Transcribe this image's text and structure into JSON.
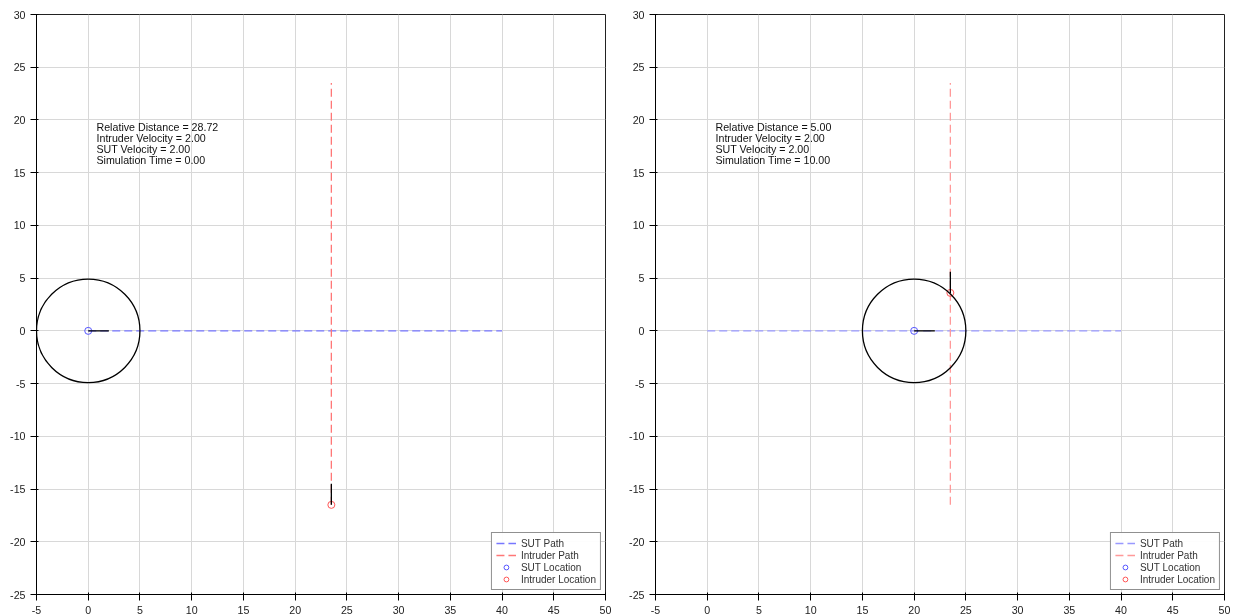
{
  "chart_data": [
    {
      "type": "line",
      "xlim": [
        -5,
        50
      ],
      "ylim": [
        -25,
        30
      ],
      "xticks": [
        -5,
        0,
        5,
        10,
        15,
        20,
        25,
        30,
        35,
        40,
        45,
        50
      ],
      "yticks": [
        -25,
        -20,
        -15,
        -10,
        -5,
        0,
        5,
        10,
        15,
        20,
        25,
        30
      ],
      "grid": true,
      "legend": "bottom right",
      "annotations": [
        "Relative Distance = 28.72",
        "Intruder Velocity = 2.00",
        "SUT Velocity = 2.00",
        "Simulation Time = 0.00"
      ],
      "series": [
        {
          "name": "SUT Path",
          "line_style": "dashed",
          "color": "#7777ff",
          "x": [
            0,
            40
          ],
          "values": [
            0,
            0
          ]
        },
        {
          "name": "Intruder Path",
          "line_style": "dashed",
          "color": "#ff7777",
          "x": [
            23.5,
            23.5
          ],
          "values": [
            -16.5,
            23.5
          ]
        },
        {
          "name": "SUT Location",
          "type": "scatter",
          "marker": "circle",
          "color": "#5555ff",
          "x": [
            0
          ],
          "values": [
            0
          ]
        },
        {
          "name": "Intruder Location",
          "type": "scatter",
          "marker": "circle",
          "color": "#ff5555",
          "x": [
            23.5
          ],
          "values": [
            -16.5
          ]
        },
        {
          "line_style": "solid",
          "color": "#000000",
          "x": [
            0,
            2
          ],
          "values": [
            0,
            0
          ]
        },
        {
          "line_style": "solid",
          "color": "#000000",
          "x": [
            23.5,
            23.5
          ],
          "values": [
            -16.5,
            -14.5
          ]
        }
      ]
    },
    {
      "type": "line",
      "xlim": [
        -5,
        50
      ],
      "ylim": [
        -25,
        30
      ],
      "xticks": [
        -5,
        0,
        5,
        10,
        15,
        20,
        25,
        30,
        35,
        40,
        45,
        50
      ],
      "yticks": [
        -25,
        -20,
        -15,
        -10,
        -5,
        0,
        5,
        10,
        15,
        20,
        25,
        30
      ],
      "grid": true,
      "legend": "bottom right",
      "annotations": [
        "Relative Distance = 5.00",
        "Intruder Velocity = 2.00",
        "SUT Velocity = 2.00",
        "Simulation Time = 10.00"
      ],
      "series": [
        {
          "name": "SUT Path",
          "line_style": "dashed",
          "color": "#9999ff",
          "x": [
            0,
            40
          ],
          "values": [
            0,
            0
          ]
        },
        {
          "name": "Intruder Path",
          "line_style": "dashed",
          "color": "#ff9999",
          "x": [
            23.5,
            23.5
          ],
          "values": [
            -16.5,
            23.5
          ]
        },
        {
          "name": "SUT Location",
          "type": "scatter",
          "marker": "circle",
          "color": "#5555ff",
          "x": [
            20
          ],
          "values": [
            0
          ]
        },
        {
          "name": "Intruder Location",
          "type": "scatter",
          "marker": "circle",
          "color": "#ff5555",
          "x": [
            23.5
          ],
          "values": [
            3.6
          ]
        },
        {
          "line_style": "solid",
          "color": "#000000",
          "x": [
            20,
            22
          ],
          "values": [
            0,
            0
          ]
        },
        {
          "line_style": "solid",
          "color": "#000000",
          "x": [
            23.5,
            23.5
          ],
          "values": [
            3.6,
            5.6
          ]
        }
      ]
    }
  ]
}
